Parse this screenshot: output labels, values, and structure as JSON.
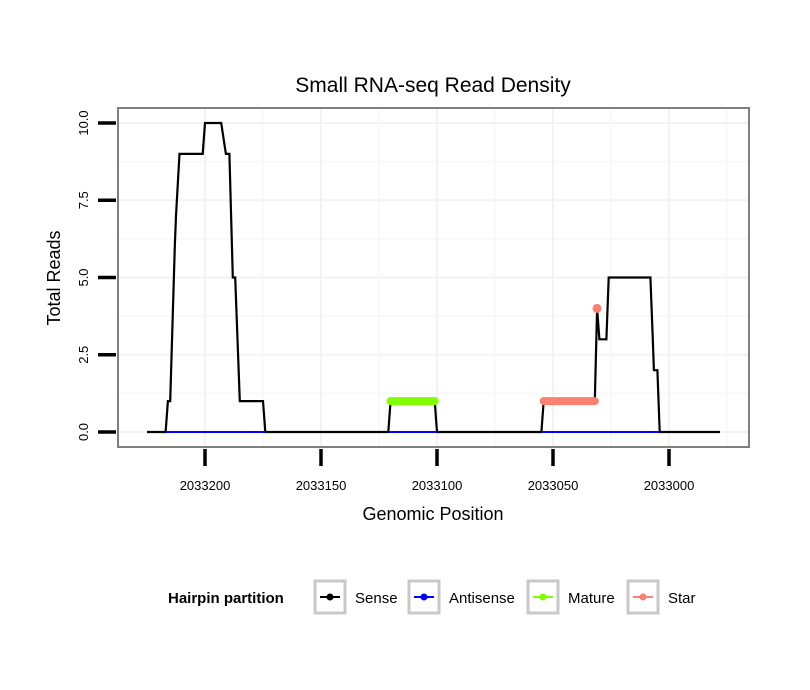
{
  "chart_data": {
    "type": "line",
    "title": "Small RNA-seq Read Density",
    "xlabel": "Genomic Position",
    "ylabel": "Total Reads",
    "x_reversed": true,
    "xlim": [
      2033228,
      2032973
    ],
    "ylim": [
      -0.5,
      10.5
    ],
    "x_ticks": [
      2033200,
      2033150,
      2033100,
      2033050,
      2033000
    ],
    "x_tick_labels": [
      "2033200",
      "2033150",
      "2033100",
      "2033050",
      "2033000"
    ],
    "y_ticks": [
      0,
      2.5,
      5,
      7.5,
      10
    ],
    "y_tick_labels": [
      "0.0",
      "2.5",
      "5.0",
      "7.5",
      "10.0"
    ],
    "grid": true,
    "legend": {
      "title": "Hairpin partition",
      "position": "bottom",
      "entries": [
        {
          "name": "Sense",
          "color": "#000000"
        },
        {
          "name": "Antisense",
          "color": "#0000ff"
        },
        {
          "name": "Mature",
          "color": "#7fff00"
        },
        {
          "name": "Star",
          "color": "#fa8072"
        }
      ]
    },
    "series": [
      {
        "name": "Sense",
        "color": "#000000",
        "points": [
          [
            2033225,
            0
          ],
          [
            2033217,
            0
          ],
          [
            2033216,
            1
          ],
          [
            2033215,
            1
          ],
          [
            2033213,
            6
          ],
          [
            2033212.5,
            7
          ],
          [
            2033211,
            9
          ],
          [
            2033201,
            9
          ],
          [
            2033200,
            10
          ],
          [
            2033193,
            10
          ],
          [
            2033191,
            9
          ],
          [
            2033189.5,
            9
          ],
          [
            2033188,
            5
          ],
          [
            2033187,
            5
          ],
          [
            2033185,
            1
          ],
          [
            2033175,
            1
          ],
          [
            2033174,
            0
          ],
          [
            2033121,
            0
          ],
          [
            2033120,
            1
          ],
          [
            2033101,
            1
          ],
          [
            2033100,
            0
          ],
          [
            2033055,
            0
          ],
          [
            2033054,
            1
          ],
          [
            2033032,
            1
          ],
          [
            2033031,
            4
          ],
          [
            2033030,
            3
          ],
          [
            2033027,
            3
          ],
          [
            2033026,
            5
          ],
          [
            2033008,
            5
          ],
          [
            2033007,
            3
          ],
          [
            2033006.5,
            2
          ],
          [
            2033005,
            2
          ],
          [
            2033004,
            0
          ],
          [
            2032978,
            0
          ]
        ]
      },
      {
        "name": "Antisense",
        "color": "#0000ff",
        "segments": [
          [
            [
              2033217,
              0
            ],
            [
              2033174,
              0
            ]
          ],
          [
            [
              2033121,
              0
            ],
            [
              2033100,
              0
            ]
          ],
          [
            [
              2033055,
              0
            ],
            [
              2033004,
              0
            ]
          ]
        ]
      },
      {
        "name": "Mature",
        "color": "#7fff00",
        "points": [
          [
            2033120,
            1
          ],
          [
            2033101,
            1
          ]
        ]
      },
      {
        "name": "Star",
        "color": "#fa8072",
        "points": [
          [
            2033054,
            1
          ],
          [
            2033032,
            1
          ]
        ],
        "extra_points": [
          [
            2033031,
            4
          ]
        ]
      }
    ]
  }
}
